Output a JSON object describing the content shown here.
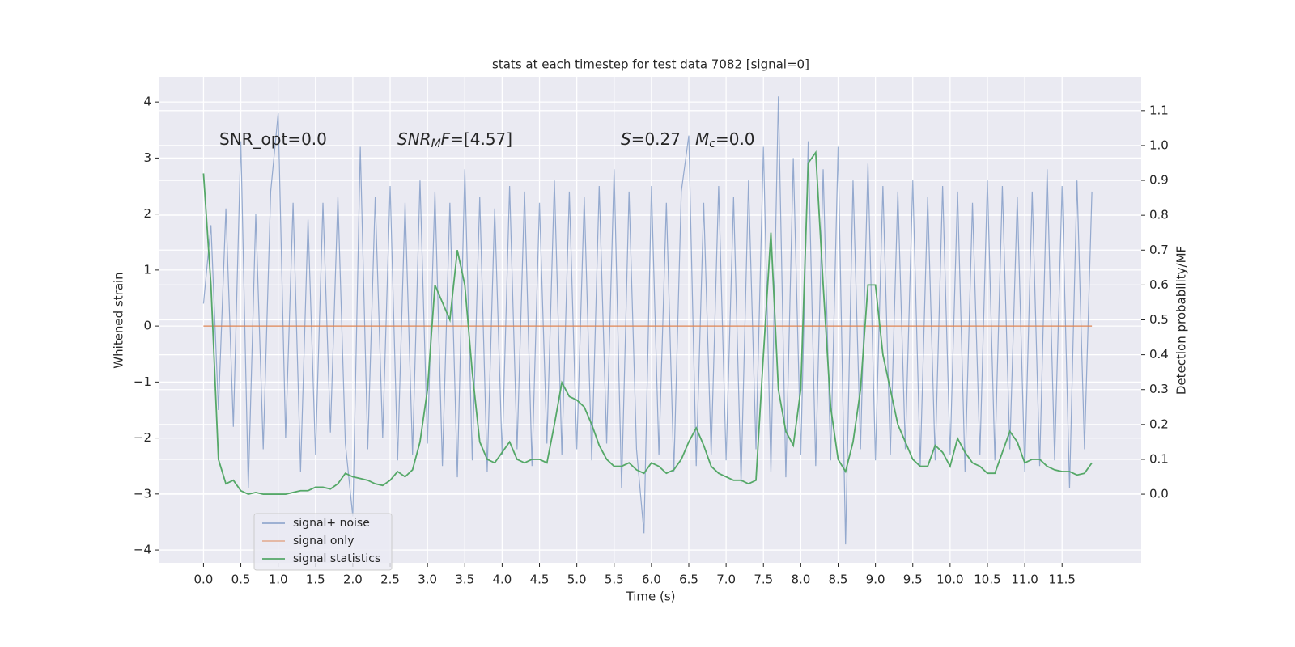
{
  "chart_data": {
    "type": "line",
    "title": "stats at each timestep for test data 7082 [signal=0]",
    "xlabel": "Time (s)",
    "ylabel": "Whitened strain",
    "y2label": "Detection probability/MF",
    "xlim": [
      -0.59,
      12.56
    ],
    "ylim": [
      -4.23,
      4.45
    ],
    "y2lim": [
      -0.197,
      1.197
    ],
    "xticks": [
      {
        "value": 0,
        "label": "0.0"
      },
      0.5,
      {
        "value": 1,
        "label": "1.0"
      },
      1.5,
      {
        "value": 2,
        "label": "2.0"
      },
      2.5,
      {
        "value": 3,
        "label": "3.0"
      },
      3.5,
      {
        "value": 4,
        "label": "4.0"
      },
      4.5,
      {
        "value": 5,
        "label": "5.0"
      },
      5.5,
      {
        "value": 6,
        "label": "6.0"
      },
      6.5,
      {
        "value": 7,
        "label": "7.0"
      },
      7.5,
      {
        "value": 8,
        "label": "8.0"
      },
      8.5,
      {
        "value": 9,
        "label": "9.0"
      },
      9.5,
      {
        "value": 10,
        "label": "10.0"
      },
      10.5,
      {
        "value": 11,
        "label": "11.0"
      },
      11.5
    ],
    "yticks": [
      {
        "value": -4,
        "label": "−4"
      },
      {
        "value": -3,
        "label": "−3"
      },
      {
        "value": -2,
        "label": "−2"
      },
      {
        "value": -1,
        "label": "−1"
      },
      0,
      1,
      2,
      3,
      4
    ],
    "y2ticks": [
      {
        "value": 0,
        "label": "0.0"
      },
      0.1,
      0.2,
      0.3,
      0.4,
      0.5,
      0.6,
      0.7,
      0.8,
      0.9,
      {
        "value": 1,
        "label": "1.0"
      },
      1.1
    ],
    "grid": true,
    "legend": "lower left",
    "annotations": [
      [
        {
          "text": "SNR_opt=0.0",
          "italic": false,
          "sub": false
        }
      ],
      [
        {
          "text": "SNR",
          "italic": true,
          "sub": false
        },
        {
          "text": "M",
          "italic": true,
          "sub": true
        },
        {
          "text": "F",
          "italic": true,
          "sub": false
        },
        {
          "text": "=[4.57]",
          "italic": false,
          "sub": false
        }
      ],
      [
        {
          "text": "S",
          "italic": true,
          "sub": false
        },
        {
          "text": "=0.27",
          "italic": false,
          "sub": false
        }
      ],
      [
        {
          "text": "M",
          "italic": true,
          "sub": false
        },
        {
          "text": "c",
          "italic": true,
          "sub": true
        },
        {
          "text": "=0.0",
          "italic": false,
          "sub": false
        }
      ]
    ],
    "x": [
      0,
      0.1,
      0.2,
      0.3,
      0.4,
      0.5,
      0.6,
      0.7,
      0.8,
      0.9,
      1,
      1.1,
      1.2,
      1.3,
      1.4,
      1.5,
      1.6,
      1.7,
      1.8,
      1.9,
      2,
      2.1,
      2.2,
      2.3,
      2.4,
      2.5,
      2.6,
      2.7,
      2.8,
      2.9,
      3,
      3.1,
      3.2,
      3.3,
      3.4,
      3.5,
      3.6,
      3.7,
      3.8,
      3.9,
      4,
      4.1,
      4.2,
      4.3,
      4.4,
      4.5,
      4.6,
      4.7,
      4.8,
      4.9,
      5,
      5.1,
      5.2,
      5.3,
      5.4,
      5.5,
      5.6,
      5.7,
      5.8,
      5.9,
      6,
      6.1,
      6.2,
      6.3,
      6.4,
      6.5,
      6.6,
      6.7,
      6.8,
      6.9,
      7,
      7.1,
      7.2,
      7.3,
      7.4,
      7.5,
      7.6,
      7.7,
      7.8,
      7.9,
      8,
      8.1,
      8.2,
      8.3,
      8.4,
      8.5,
      8.6,
      8.7,
      8.8,
      8.9,
      9,
      9.1,
      9.2,
      9.3,
      9.4,
      9.5,
      9.6,
      9.7,
      9.8,
      9.9,
      10,
      10.1,
      10.2,
      10.3,
      10.4,
      10.5,
      10.6,
      10.7,
      10.8,
      10.9,
      11,
      11.1,
      11.2,
      11.3,
      11.4,
      11.5,
      11.6,
      11.7,
      11.8,
      11.9
    ],
    "series": [
      {
        "name": "signal+ noise",
        "color": "#4c72b0",
        "axis": "y",
        "values": [
          0.4,
          1.8,
          -1.5,
          2.1,
          -1.8,
          3.3,
          -2.9,
          2.0,
          -2.2,
          2.4,
          3.8,
          -2.0,
          2.2,
          -2.6,
          1.9,
          -2.3,
          2.2,
          -1.9,
          2.3,
          -2.1,
          -3.4,
          3.2,
          -2.2,
          2.3,
          -2.0,
          2.5,
          -2.4,
          2.2,
          -2.3,
          2.6,
          -2.1,
          2.4,
          -2.5,
          2.2,
          -2.7,
          2.8,
          -2.4,
          2.3,
          -2.6,
          2.1,
          -2.3,
          2.5,
          -2.2,
          2.4,
          -2.5,
          2.2,
          -2.1,
          2.6,
          -2.3,
          2.4,
          -2.2,
          2.3,
          -2.4,
          2.5,
          -2.1,
          2.8,
          -2.9,
          2.4,
          -2.2,
          -3.7,
          2.5,
          -2.3,
          2.2,
          -2.6,
          2.4,
          3.4,
          -2.5,
          2.2,
          -2.3,
          2.5,
          -2.4,
          2.3,
          -2.8,
          2.6,
          -2.2,
          3.2,
          -2.6,
          4.1,
          -2.7,
          3.0,
          -2.3,
          3.3,
          -2.5,
          2.8,
          -2.4,
          3.2,
          -3.9,
          2.6,
          -2.2,
          2.9,
          -2.4,
          2.5,
          -2.3,
          2.4,
          -2.2,
          2.6,
          -2.5,
          2.3,
          -2.4,
          2.5,
          -2.3,
          2.4,
          -2.6,
          2.2,
          -2.3,
          2.6,
          -2.4,
          2.5,
          -2.2,
          2.3,
          -2.6,
          2.4,
          -2.5,
          2.8,
          -2.4,
          2.5,
          -2.9,
          2.6,
          -2.2,
          2.4
        ]
      },
      {
        "name": "signal only",
        "color": "#dd8452",
        "axis": "y",
        "values": [
          0,
          0,
          0,
          0,
          0,
          0,
          0,
          0,
          0,
          0,
          0,
          0,
          0,
          0,
          0,
          0,
          0,
          0,
          0,
          0,
          0,
          0,
          0,
          0,
          0,
          0,
          0,
          0,
          0,
          0,
          0,
          0,
          0,
          0,
          0,
          0,
          0,
          0,
          0,
          0,
          0,
          0,
          0,
          0,
          0,
          0,
          0,
          0,
          0,
          0,
          0,
          0,
          0,
          0,
          0,
          0,
          0,
          0,
          0,
          0,
          0,
          0,
          0,
          0,
          0,
          0,
          0,
          0,
          0,
          0,
          0,
          0,
          0,
          0,
          0,
          0,
          0,
          0,
          0,
          0,
          0,
          0,
          0,
          0,
          0,
          0,
          0,
          0,
          0,
          0,
          0,
          0,
          0,
          0,
          0,
          0,
          0,
          0,
          0,
          0,
          0,
          0,
          0,
          0,
          0,
          0,
          0,
          0,
          0,
          0,
          0,
          0,
          0,
          0,
          0,
          0,
          0,
          0,
          0,
          0
        ]
      },
      {
        "name": "signal statistics",
        "color": "#55a868",
        "axis": "y2",
        "values": [
          0.92,
          0.6,
          0.1,
          0.03,
          0.04,
          0.01,
          0.0,
          0.005,
          0.0,
          0.0,
          0.0,
          0.0,
          0.005,
          0.01,
          0.01,
          0.02,
          0.02,
          0.015,
          0.03,
          0.06,
          0.05,
          0.045,
          0.04,
          0.03,
          0.025,
          0.04,
          0.065,
          0.05,
          0.07,
          0.15,
          0.3,
          0.6,
          0.55,
          0.5,
          0.7,
          0.6,
          0.35,
          0.15,
          0.1,
          0.09,
          0.12,
          0.15,
          0.1,
          0.09,
          0.1,
          0.1,
          0.09,
          0.2,
          0.32,
          0.28,
          0.27,
          0.25,
          0.2,
          0.14,
          0.1,
          0.08,
          0.08,
          0.09,
          0.07,
          0.06,
          0.09,
          0.08,
          0.06,
          0.07,
          0.1,
          0.15,
          0.19,
          0.14,
          0.08,
          0.06,
          0.05,
          0.04,
          0.04,
          0.03,
          0.04,
          0.4,
          0.75,
          0.3,
          0.18,
          0.14,
          0.3,
          0.95,
          0.98,
          0.6,
          0.25,
          0.1,
          0.065,
          0.15,
          0.3,
          0.6,
          0.6,
          0.4,
          0.3,
          0.2,
          0.15,
          0.1,
          0.08,
          0.08,
          0.14,
          0.12,
          0.08,
          0.16,
          0.12,
          0.09,
          0.08,
          0.06,
          0.06,
          0.12,
          0.18,
          0.15,
          0.09,
          0.1,
          0.1,
          0.08,
          0.07,
          0.065,
          0.065,
          0.055,
          0.06,
          0.09
        ]
      }
    ]
  }
}
